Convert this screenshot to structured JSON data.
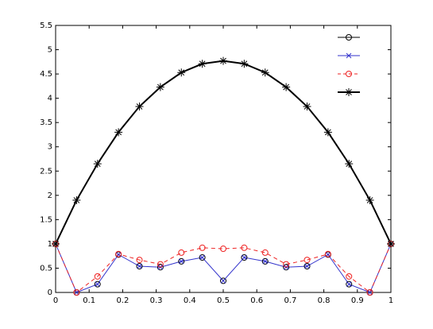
{
  "chart_data": {
    "type": "line",
    "x": [
      0,
      0.0625,
      0.125,
      0.1875,
      0.25,
      0.3125,
      0.375,
      0.4375,
      0.5,
      0.5625,
      0.625,
      0.6875,
      0.75,
      0.8125,
      0.875,
      0.9375,
      1
    ],
    "series": [
      {
        "color": "#000000",
        "marker": "circle",
        "line": "none",
        "values": [
          1,
          0,
          0.17,
          0.78,
          0.54,
          0.52,
          0.64,
          0.72,
          0.24,
          0.72,
          0.64,
          0.52,
          0.54,
          0.78,
          0.17,
          0,
          1
        ]
      },
      {
        "color": "#3333cc",
        "marker": "x",
        "line": "solid",
        "values": [
          1,
          0,
          0.17,
          0.78,
          0.54,
          0.52,
          0.64,
          0.72,
          0.24,
          0.72,
          0.64,
          0.52,
          0.54,
          0.78,
          0.17,
          0,
          1
        ]
      },
      {
        "color": "#ee2222",
        "marker": "circle",
        "line": "dashed",
        "values": [
          1,
          0,
          0.33,
          0.79,
          0.67,
          0.58,
          0.82,
          0.92,
          0.9,
          0.92,
          0.82,
          0.58,
          0.67,
          0.79,
          0.33,
          0,
          1
        ]
      },
      {
        "color": "#000000",
        "marker": "asterisk",
        "line": "solid",
        "values": [
          1,
          1.9,
          2.65,
          3.3,
          3.83,
          4.23,
          4.53,
          4.71,
          4.77,
          4.71,
          4.53,
          4.23,
          3.83,
          3.3,
          2.65,
          1.9,
          1
        ]
      }
    ],
    "xlim": [
      0,
      1
    ],
    "xticks": [
      0,
      0.1,
      0.2,
      0.3,
      0.4,
      0.5,
      0.6,
      0.7,
      0.8,
      0.9,
      1
    ],
    "ylim": [
      0,
      5.5
    ],
    "yticks": [
      0,
      0.5,
      1,
      1.5,
      2,
      2.5,
      3,
      3.5,
      4,
      4.5,
      5,
      5.5
    ],
    "legend": "top-right"
  }
}
